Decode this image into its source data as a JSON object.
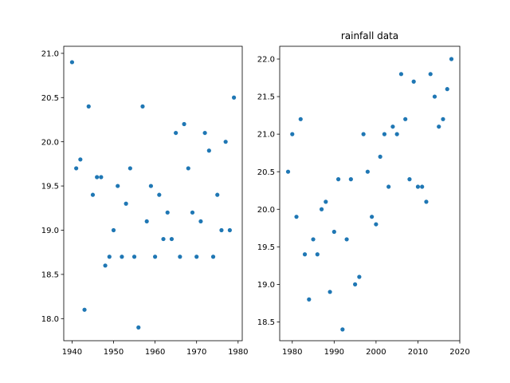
{
  "chart_data": [
    {
      "type": "scatter",
      "title": "",
      "xlabel": "",
      "ylabel": "",
      "xlim": [
        1938,
        1981
      ],
      "ylim": [
        17.75,
        21.08
      ],
      "xticks": [
        1940,
        1950,
        1960,
        1970,
        1980
      ],
      "yticks": [
        18.0,
        18.5,
        19.0,
        19.5,
        20.0,
        20.5,
        21.0
      ],
      "xtick_labels": [
        "1940",
        "1950",
        "1960",
        "1970",
        "1980"
      ],
      "ytick_labels": [
        "18.0",
        "18.5",
        "19.0",
        "19.5",
        "20.0",
        "20.5",
        "21.0"
      ],
      "color": "#1f77b4",
      "points": [
        [
          1940,
          20.9
        ],
        [
          1941,
          19.7
        ],
        [
          1942,
          19.8
        ],
        [
          1943,
          18.1
        ],
        [
          1944,
          20.4
        ],
        [
          1945,
          19.4
        ],
        [
          1946,
          19.6
        ],
        [
          1947,
          19.6
        ],
        [
          1948,
          18.6
        ],
        [
          1949,
          18.7
        ],
        [
          1950,
          19.0
        ],
        [
          1951,
          19.5
        ],
        [
          1952,
          18.7
        ],
        [
          1953,
          19.3
        ],
        [
          1954,
          19.7
        ],
        [
          1955,
          18.7
        ],
        [
          1956,
          17.9
        ],
        [
          1957,
          20.4
        ],
        [
          1958,
          19.1
        ],
        [
          1959,
          19.5
        ],
        [
          1960,
          18.7
        ],
        [
          1961,
          19.4
        ],
        [
          1962,
          18.9
        ],
        [
          1963,
          19.2
        ],
        [
          1964,
          18.9
        ],
        [
          1965,
          20.1
        ],
        [
          1966,
          18.7
        ],
        [
          1967,
          20.2
        ],
        [
          1968,
          19.7
        ],
        [
          1969,
          19.2
        ],
        [
          1970,
          18.7
        ],
        [
          1971,
          19.1
        ],
        [
          1972,
          20.1
        ],
        [
          1973,
          19.9
        ],
        [
          1974,
          18.7
        ],
        [
          1975,
          19.4
        ],
        [
          1976,
          19.0
        ],
        [
          1977,
          20.0
        ],
        [
          1978,
          19.0
        ],
        [
          1979,
          20.5
        ]
      ]
    },
    {
      "type": "scatter",
      "title": "rainfall data",
      "xlabel": "",
      "ylabel": "",
      "xlim": [
        1977,
        2020
      ],
      "ylim": [
        18.25,
        22.17
      ],
      "xticks": [
        1980,
        1990,
        2000,
        2010,
        2020
      ],
      "yticks": [
        18.5,
        19.0,
        19.5,
        20.0,
        20.5,
        21.0,
        21.5,
        22.0
      ],
      "xtick_labels": [
        "1980",
        "1990",
        "2000",
        "2010",
        "2020"
      ],
      "ytick_labels": [
        "18.5",
        "19.0",
        "19.5",
        "20.0",
        "20.5",
        "21.0",
        "21.5",
        "22.0"
      ],
      "color": "#1f77b4",
      "points": [
        [
          1979,
          20.5
        ],
        [
          1980,
          21.0
        ],
        [
          1981,
          19.9
        ],
        [
          1982,
          21.2
        ],
        [
          1983,
          19.4
        ],
        [
          1984,
          18.8
        ],
        [
          1985,
          19.6
        ],
        [
          1986,
          19.4
        ],
        [
          1987,
          20.0
        ],
        [
          1988,
          20.1
        ],
        [
          1989,
          18.9
        ],
        [
          1990,
          19.7
        ],
        [
          1991,
          20.4
        ],
        [
          1992,
          18.4
        ],
        [
          1993,
          19.6
        ],
        [
          1994,
          20.4
        ],
        [
          1995,
          19.0
        ],
        [
          1996,
          19.1
        ],
        [
          1997,
          21.0
        ],
        [
          1998,
          20.5
        ],
        [
          1999,
          19.9
        ],
        [
          2000,
          19.8
        ],
        [
          2001,
          20.7
        ],
        [
          2002,
          21.0
        ],
        [
          2003,
          20.3
        ],
        [
          2004,
          21.1
        ],
        [
          2005,
          21.0
        ],
        [
          2006,
          21.8
        ],
        [
          2007,
          21.2
        ],
        [
          2008,
          20.4
        ],
        [
          2009,
          21.7
        ],
        [
          2010,
          20.3
        ],
        [
          2011,
          20.3
        ],
        [
          2012,
          20.1
        ],
        [
          2013,
          21.8
        ],
        [
          2014,
          21.5
        ],
        [
          2015,
          21.1
        ],
        [
          2016,
          21.2
        ],
        [
          2017,
          21.6
        ],
        [
          2018,
          22.0
        ]
      ]
    }
  ]
}
